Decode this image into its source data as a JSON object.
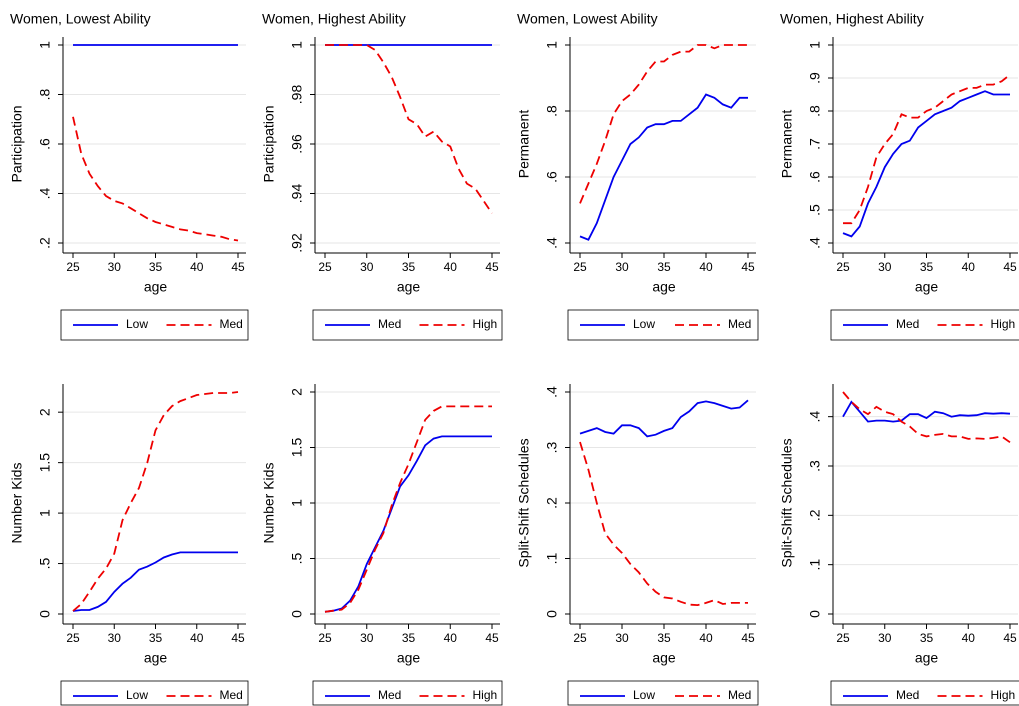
{
  "chart_data": [
    {
      "type": "line",
      "title": "Women, Lowest Ability",
      "ylabel": "Participation",
      "xlabel": "age",
      "x": [
        25,
        26,
        27,
        28,
        29,
        30,
        31,
        32,
        33,
        34,
        35,
        36,
        37,
        38,
        39,
        40,
        41,
        42,
        43,
        44,
        45
      ],
      "xlim": [
        25,
        45
      ],
      "xticks": [
        25,
        30,
        35,
        40,
        45
      ],
      "ylim": [
        0.2,
        1
      ],
      "yticks": [
        {
          "value": 0.2,
          "label": ".2"
        },
        {
          "value": 0.4,
          "label": ".4"
        },
        {
          "value": 0.6,
          "label": ".6"
        },
        {
          "value": 0.8,
          "label": ".8"
        },
        1
      ],
      "grid": true,
      "series": [
        {
          "name": "Low",
          "color": "#0000ee",
          "linestyle": "solid",
          "values": [
            1,
            1,
            1,
            1,
            1,
            1,
            1,
            1,
            1,
            1,
            1,
            1,
            1,
            1,
            1,
            1,
            1,
            1,
            1,
            1,
            1
          ]
        },
        {
          "name": "Med",
          "color": "#ee0000",
          "linestyle": "dashed",
          "values": [
            0.71,
            0.56,
            0.48,
            0.43,
            0.39,
            0.37,
            0.36,
            0.34,
            0.32,
            0.3,
            0.285,
            0.275,
            0.265,
            0.255,
            0.25,
            0.24,
            0.235,
            0.23,
            0.225,
            0.215,
            0.21
          ]
        }
      ]
    },
    {
      "type": "line",
      "title": "Women, Highest Ability",
      "ylabel": "Participation",
      "xlabel": "age",
      "x": [
        25,
        26,
        27,
        28,
        29,
        30,
        31,
        32,
        33,
        34,
        35,
        36,
        37,
        38,
        39,
        40,
        41,
        42,
        43,
        44,
        45
      ],
      "xlim": [
        25,
        45
      ],
      "xticks": [
        25,
        30,
        35,
        40,
        45
      ],
      "ylim": [
        0.92,
        1
      ],
      "yticks": [
        {
          "value": 0.92,
          "label": ".92"
        },
        {
          "value": 0.94,
          "label": ".94"
        },
        {
          "value": 0.96,
          "label": ".96"
        },
        {
          "value": 0.98,
          "label": ".98"
        },
        1
      ],
      "grid": true,
      "series": [
        {
          "name": "Med",
          "color": "#0000ee",
          "linestyle": "solid",
          "values": [
            1,
            1,
            1,
            1,
            1,
            1,
            1,
            1,
            1,
            1,
            1,
            1,
            1,
            1,
            1,
            1,
            1,
            1,
            1,
            1,
            1
          ]
        },
        {
          "name": "High",
          "color": "#ee0000",
          "linestyle": "dashed",
          "values": [
            1,
            1,
            1,
            1,
            1,
            1,
            0.998,
            0.993,
            0.987,
            0.979,
            0.97,
            0.968,
            0.963,
            0.965,
            0.961,
            0.959,
            0.95,
            0.944,
            0.942,
            0.937,
            0.932
          ]
        }
      ]
    },
    {
      "type": "line",
      "title": "Women, Lowest Ability",
      "ylabel": "Permanent",
      "xlabel": "age",
      "x": [
        25,
        26,
        27,
        28,
        29,
        30,
        31,
        32,
        33,
        34,
        35,
        36,
        37,
        38,
        39,
        40,
        41,
        42,
        43,
        44,
        45
      ],
      "xlim": [
        25,
        45
      ],
      "xticks": [
        25,
        30,
        35,
        40,
        45
      ],
      "ylim": [
        0.4,
        1
      ],
      "yticks": [
        {
          "value": 0.4,
          "label": ".4"
        },
        {
          "value": 0.6,
          "label": ".6"
        },
        {
          "value": 0.8,
          "label": ".8"
        },
        1
      ],
      "grid": true,
      "series": [
        {
          "name": "Low",
          "color": "#0000ee",
          "linestyle": "solid",
          "values": [
            0.42,
            0.41,
            0.46,
            0.53,
            0.6,
            0.65,
            0.7,
            0.72,
            0.75,
            0.76,
            0.76,
            0.77,
            0.77,
            0.79,
            0.81,
            0.85,
            0.84,
            0.82,
            0.81,
            0.84,
            0.84
          ]
        },
        {
          "name": "Med",
          "color": "#ee0000",
          "linestyle": "dashed",
          "values": [
            0.52,
            0.58,
            0.64,
            0.71,
            0.79,
            0.83,
            0.85,
            0.88,
            0.92,
            0.95,
            0.95,
            0.97,
            0.98,
            0.98,
            1,
            1,
            0.99,
            1,
            1,
            1,
            1
          ]
        }
      ]
    },
    {
      "type": "line",
      "title": "Women, Highest Ability",
      "ylabel": "Permanent",
      "xlabel": "age",
      "x": [
        25,
        26,
        27,
        28,
        29,
        30,
        31,
        32,
        33,
        34,
        35,
        36,
        37,
        38,
        39,
        40,
        41,
        42,
        43,
        44,
        45
      ],
      "xlim": [
        25,
        45
      ],
      "xticks": [
        25,
        30,
        35,
        40,
        45
      ],
      "ylim": [
        0.4,
        1
      ],
      "yticks": [
        {
          "value": 0.4,
          "label": ".4"
        },
        {
          "value": 0.5,
          "label": ".5"
        },
        {
          "value": 0.6,
          "label": ".6"
        },
        {
          "value": 0.7,
          "label": ".7"
        },
        {
          "value": 0.8,
          "label": ".8"
        },
        {
          "value": 0.9,
          "label": ".9"
        },
        1
      ],
      "grid": true,
      "series": [
        {
          "name": "Med",
          "color": "#0000ee",
          "linestyle": "solid",
          "values": [
            0.43,
            0.42,
            0.45,
            0.52,
            0.57,
            0.63,
            0.67,
            0.7,
            0.71,
            0.75,
            0.77,
            0.79,
            0.8,
            0.81,
            0.83,
            0.84,
            0.85,
            0.86,
            0.85,
            0.85,
            0.85
          ]
        },
        {
          "name": "High",
          "color": "#ee0000",
          "linestyle": "dashed",
          "values": [
            0.46,
            0.46,
            0.5,
            0.57,
            0.66,
            0.7,
            0.73,
            0.79,
            0.78,
            0.78,
            0.8,
            0.81,
            0.83,
            0.85,
            0.86,
            0.87,
            0.87,
            0.88,
            0.88,
            0.89,
            0.91
          ]
        }
      ]
    },
    {
      "type": "line",
      "ylabel": "Number Kids",
      "xlabel": "age",
      "x": [
        25,
        26,
        27,
        28,
        29,
        30,
        31,
        32,
        33,
        34,
        35,
        36,
        37,
        38,
        39,
        40,
        41,
        42,
        43,
        44,
        45
      ],
      "xlim": [
        25,
        45
      ],
      "xticks": [
        25,
        30,
        35,
        40,
        45
      ],
      "ylim": [
        0,
        2.2
      ],
      "yticks": [
        0,
        {
          "value": 0.5,
          "label": ".5"
        },
        1,
        1.5,
        2
      ],
      "grid": true,
      "series": [
        {
          "name": "Low",
          "color": "#0000ee",
          "linestyle": "solid",
          "values": [
            0.03,
            0.04,
            0.04,
            0.07,
            0.12,
            0.22,
            0.3,
            0.36,
            0.44,
            0.47,
            0.51,
            0.56,
            0.59,
            0.61,
            0.61,
            0.61,
            0.61,
            0.61,
            0.61,
            0.61,
            0.61
          ]
        },
        {
          "name": "Med",
          "color": "#ee0000",
          "linestyle": "dashed",
          "values": [
            0.03,
            0.1,
            0.22,
            0.35,
            0.45,
            0.6,
            0.93,
            1.1,
            1.25,
            1.5,
            1.82,
            1.97,
            2.06,
            2.11,
            2.14,
            2.17,
            2.18,
            2.19,
            2.19,
            2.19,
            2.2
          ]
        }
      ]
    },
    {
      "type": "line",
      "ylabel": "Number Kids",
      "xlabel": "age",
      "x": [
        25,
        26,
        27,
        28,
        29,
        30,
        31,
        32,
        33,
        34,
        35,
        36,
        37,
        38,
        39,
        40,
        41,
        42,
        43,
        44,
        45
      ],
      "xlim": [
        25,
        45
      ],
      "xticks": [
        25,
        30,
        35,
        40,
        45
      ],
      "ylim": [
        0,
        2
      ],
      "yticks": [
        0,
        {
          "value": 0.5,
          "label": ".5"
        },
        1,
        1.5,
        2
      ],
      "grid": true,
      "series": [
        {
          "name": "Med",
          "color": "#0000ee",
          "linestyle": "solid",
          "values": [
            0.02,
            0.03,
            0.05,
            0.12,
            0.25,
            0.45,
            0.6,
            0.75,
            0.95,
            1.15,
            1.25,
            1.38,
            1.52,
            1.58,
            1.6,
            1.6,
            1.6,
            1.6,
            1.6,
            1.6,
            1.6
          ]
        },
        {
          "name": "High",
          "color": "#ee0000",
          "linestyle": "dashed",
          "values": [
            0.02,
            0.03,
            0.04,
            0.1,
            0.22,
            0.4,
            0.58,
            0.73,
            0.98,
            1.18,
            1.35,
            1.55,
            1.75,
            1.83,
            1.87,
            1.87,
            1.87,
            1.87,
            1.87,
            1.87,
            1.87
          ]
        }
      ]
    },
    {
      "type": "line",
      "ylabel": "Split-Shift Schedules",
      "xlabel": "age",
      "x": [
        25,
        26,
        27,
        28,
        29,
        30,
        31,
        32,
        33,
        34,
        35,
        36,
        37,
        38,
        39,
        40,
        41,
        42,
        43,
        44,
        45
      ],
      "xlim": [
        25,
        45
      ],
      "xticks": [
        25,
        30,
        35,
        40,
        45
      ],
      "ylim": [
        0,
        0.4
      ],
      "yticks": [
        0,
        {
          "value": 0.1,
          "label": ".1"
        },
        {
          "value": 0.2,
          "label": ".2"
        },
        {
          "value": 0.3,
          "label": ".3"
        },
        {
          "value": 0.4,
          "label": ".4"
        }
      ],
      "grid": true,
      "series": [
        {
          "name": "Low",
          "color": "#0000ee",
          "linestyle": "solid",
          "values": [
            0.325,
            0.33,
            0.335,
            0.328,
            0.325,
            0.34,
            0.34,
            0.335,
            0.32,
            0.323,
            0.33,
            0.335,
            0.355,
            0.365,
            0.38,
            0.383,
            0.38,
            0.375,
            0.37,
            0.372,
            0.385
          ]
        },
        {
          "name": "Med",
          "color": "#ee0000",
          "linestyle": "dashed",
          "values": [
            0.31,
            0.26,
            0.2,
            0.145,
            0.125,
            0.11,
            0.09,
            0.075,
            0.055,
            0.04,
            0.03,
            0.028,
            0.022,
            0.017,
            0.016,
            0.02,
            0.025,
            0.018,
            0.02,
            0.02,
            0.02
          ]
        }
      ]
    },
    {
      "type": "line",
      "ylabel": "Split-Shift Schedules",
      "xlabel": "age",
      "x": [
        25,
        26,
        27,
        28,
        29,
        30,
        31,
        32,
        33,
        34,
        35,
        36,
        37,
        38,
        39,
        40,
        41,
        42,
        43,
        44,
        45
      ],
      "xlim": [
        25,
        45
      ],
      "xticks": [
        25,
        30,
        35,
        40,
        45
      ],
      "ylim": [
        0,
        0.45
      ],
      "yticks": [
        0,
        {
          "value": 0.1,
          "label": ".1"
        },
        {
          "value": 0.2,
          "label": ".2"
        },
        {
          "value": 0.3,
          "label": ".3"
        },
        {
          "value": 0.4,
          "label": ".4"
        }
      ],
      "grid": true,
      "series": [
        {
          "name": "Med",
          "color": "#0000ee",
          "linestyle": "solid",
          "values": [
            0.4,
            0.43,
            0.41,
            0.39,
            0.392,
            0.392,
            0.39,
            0.392,
            0.405,
            0.405,
            0.397,
            0.41,
            0.407,
            0.4,
            0.403,
            0.402,
            0.403,
            0.407,
            0.406,
            0.407,
            0.406
          ]
        },
        {
          "name": "High",
          "color": "#ee0000",
          "linestyle": "dashed",
          "values": [
            0.45,
            0.43,
            0.415,
            0.405,
            0.42,
            0.41,
            0.405,
            0.39,
            0.38,
            0.365,
            0.36,
            0.363,
            0.365,
            0.36,
            0.36,
            0.355,
            0.356,
            0.355,
            0.357,
            0.36,
            0.348
          ]
        }
      ]
    }
  ]
}
